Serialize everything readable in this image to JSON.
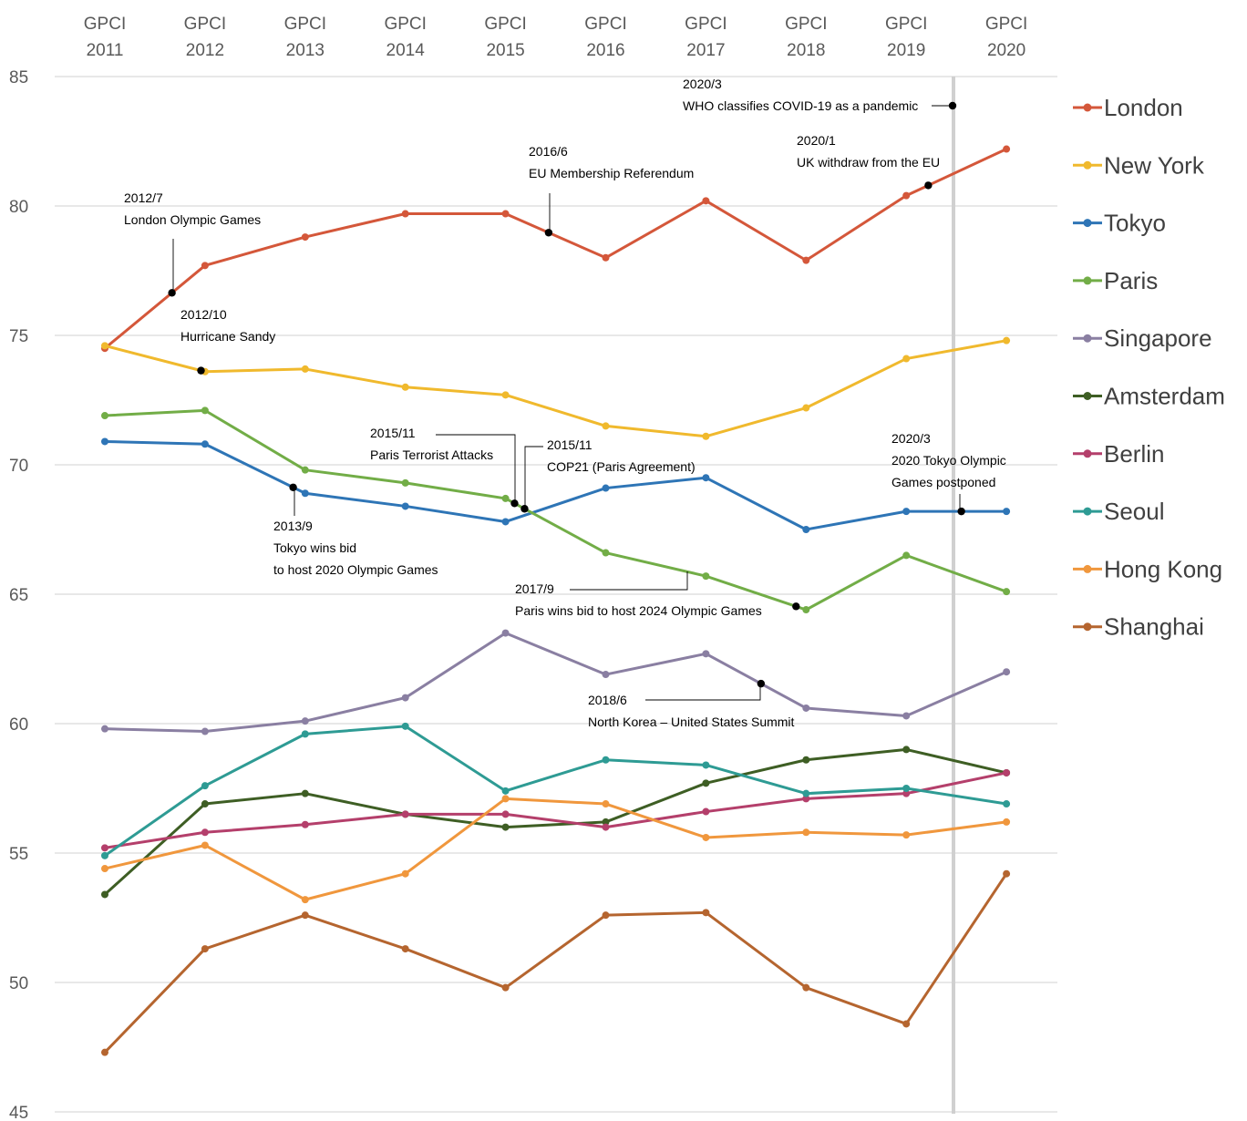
{
  "chart_data": {
    "type": "line",
    "categories": [
      "GPCI 2011",
      "GPCI 2012",
      "GPCI 2013",
      "GPCI 2014",
      "GPCI 2015",
      "GPCI 2016",
      "GPCI 2017",
      "GPCI 2018",
      "GPCI 2019",
      "GPCI 2020"
    ],
    "category_lines": [
      [
        "GPCI",
        "2011"
      ],
      [
        "GPCI",
        "2012"
      ],
      [
        "GPCI",
        "2013"
      ],
      [
        "GPCI",
        "2014"
      ],
      [
        "GPCI",
        "2015"
      ],
      [
        "GPCI",
        "2016"
      ],
      [
        "GPCI",
        "2017"
      ],
      [
        "GPCI",
        "2018"
      ],
      [
        "GPCI",
        "2019"
      ],
      [
        "GPCI",
        "2020"
      ]
    ],
    "ylim": [
      45,
      85
    ],
    "yticks": [
      "45",
      "50",
      "55",
      "60",
      "65",
      "70",
      "75",
      "80",
      "85"
    ],
    "grid": true,
    "legend_position": "right",
    "series": [
      {
        "name": "London",
        "color": "#d4573a",
        "values": [
          74.5,
          77.7,
          78.8,
          79.7,
          79.7,
          78.0,
          80.2,
          77.9,
          80.4,
          82.2
        ]
      },
      {
        "name": "New York",
        "color": "#f0b92d",
        "values": [
          74.6,
          73.6,
          73.7,
          73.0,
          72.7,
          71.5,
          71.1,
          72.2,
          74.1,
          74.8
        ]
      },
      {
        "name": "Tokyo",
        "color": "#2e75b6",
        "values": [
          70.9,
          70.8,
          68.9,
          68.4,
          67.8,
          69.1,
          69.5,
          67.5,
          68.2,
          68.2
        ]
      },
      {
        "name": "Paris",
        "color": "#72ad47",
        "values": [
          71.9,
          72.1,
          69.8,
          69.3,
          68.7,
          66.6,
          65.7,
          64.4,
          66.5,
          65.1
        ]
      },
      {
        "name": "Singapore",
        "color": "#8a7fa2",
        "values": [
          59.8,
          59.7,
          60.1,
          61.0,
          63.5,
          61.9,
          62.7,
          60.6,
          60.3,
          62.0
        ]
      },
      {
        "name": "Amsterdam",
        "color": "#3e5e24",
        "values": [
          53.4,
          56.9,
          57.3,
          56.5,
          56.0,
          56.2,
          57.7,
          58.6,
          59.0,
          58.1
        ]
      },
      {
        "name": "Berlin",
        "color": "#b43f6b",
        "values": [
          55.2,
          55.8,
          56.1,
          56.5,
          56.5,
          56.0,
          56.6,
          57.1,
          57.3,
          58.1
        ]
      },
      {
        "name": "Seoul",
        "color": "#2e9b94",
        "values": [
          54.9,
          57.6,
          59.6,
          59.9,
          57.4,
          58.6,
          58.4,
          57.3,
          57.5,
          56.9
        ]
      },
      {
        "name": "Hong Kong",
        "color": "#f0973d",
        "values": [
          54.4,
          55.3,
          53.2,
          54.2,
          57.1,
          56.9,
          55.6,
          55.8,
          55.7,
          56.2
        ]
      },
      {
        "name": "Shanghai",
        "color": "#b5652f",
        "values": [
          47.3,
          51.3,
          52.6,
          51.3,
          49.8,
          52.6,
          52.7,
          49.8,
          48.4,
          54.2
        ]
      }
    ],
    "annotations": [
      {
        "date": "2012/7",
        "text": "London Olympic Games"
      },
      {
        "date": "2012/10",
        "text": "Hurricane Sandy"
      },
      {
        "date": "2013/9",
        "text": "Tokyo wins bid",
        "text2": "to host 2020 Olympic Games"
      },
      {
        "date": "2015/11",
        "text": "Paris Terrorist Attacks"
      },
      {
        "date": "2015/11",
        "text": "COP21 (Paris Agreement)"
      },
      {
        "date": "2016/6",
        "text": "EU Membership Referendum"
      },
      {
        "date": "2017/9",
        "text": "Paris wins bid to host 2024 Olympic Games"
      },
      {
        "date": "2018/6",
        "text": "North Korea – United States Summit"
      },
      {
        "date": "2020/1",
        "text": "UK withdraw from the EU"
      },
      {
        "date": "2020/3",
        "text": "WHO classifies COVID-19 as a pandemic"
      },
      {
        "date": "2020/3",
        "text": "2020 Tokyo Olympic",
        "text2": "Games postponed"
      }
    ]
  }
}
